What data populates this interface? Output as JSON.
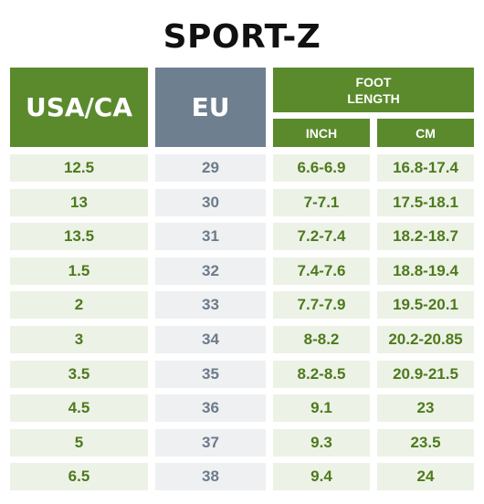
{
  "title": "SPORT-Z",
  "headers": {
    "usa_ca": "USA/CA",
    "eu": "EU",
    "foot_length": "FOOT\nLENGTH",
    "inch": "INCH",
    "cm": "CM"
  },
  "rows": [
    {
      "usa": "12.5",
      "eu": "29",
      "inch": "6.6-6.9",
      "cm": "16.8-17.4"
    },
    {
      "usa": "13",
      "eu": "30",
      "inch": "7-7.1",
      "cm": "17.5-18.1"
    },
    {
      "usa": "13.5",
      "eu": "31",
      "inch": "7.2-7.4",
      "cm": "18.2-18.7"
    },
    {
      "usa": "1.5",
      "eu": "32",
      "inch": "7.4-7.6",
      "cm": "18.8-19.4"
    },
    {
      "usa": "2",
      "eu": "33",
      "inch": "7.7-7.9",
      "cm": "19.5-20.1"
    },
    {
      "usa": "3",
      "eu": "34",
      "inch": "8-8.2",
      "cm": "20.2-20.85"
    },
    {
      "usa": "3.5",
      "eu": "35",
      "inch": "8.2-8.5",
      "cm": "20.9-21.5"
    },
    {
      "usa": "4.5",
      "eu": "36",
      "inch": "9.1",
      "cm": "23"
    },
    {
      "usa": "5",
      "eu": "37",
      "inch": "9.3",
      "cm": "23.5"
    },
    {
      "usa": "6.5",
      "eu": "38",
      "inch": "9.4",
      "cm": "24"
    }
  ],
  "colors": {
    "header_green": "#5a8a2c",
    "header_gray": "#6e7f90",
    "row_green_bg": "#edf2e7",
    "row_green_text": "#4d7a1c",
    "row_gray_bg": "#eef0f2",
    "row_gray_text": "#6c7b8a"
  }
}
